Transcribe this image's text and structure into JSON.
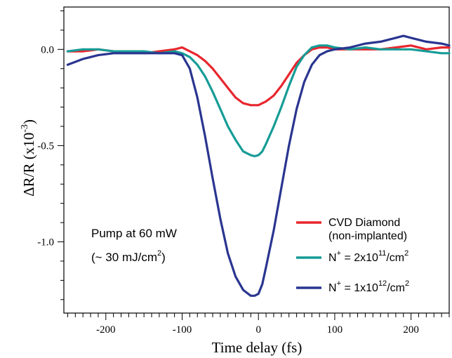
{
  "chart_data": {
    "type": "line",
    "xlabel": "Time delay (fs)",
    "ylabel_main": "ΔR/R (x10",
    "ylabel_exp": "-3",
    "ylabel_close": ")",
    "xlim": [
      -255,
      250
    ],
    "ylim": [
      -1.37,
      0.22
    ],
    "xticks": [
      -200,
      -100,
      0,
      100,
      200
    ],
    "xtick_labels": [
      "-200",
      "-100",
      "0",
      "100",
      "200"
    ],
    "yticks": [
      0,
      -0.5,
      -1.0
    ],
    "ytick_labels": [
      "0.0",
      "-0.5",
      "-1.0"
    ],
    "annotation": {
      "line1": "Pump at 60 mW",
      "line2_pre": "(~ 30 mJ/cm",
      "line2_sup": "2",
      "line2_post": ")"
    },
    "legend_position": "lower-right",
    "series": [
      {
        "name": "CVD Diamond",
        "name_line2": "(non-implanted)",
        "color": "#e8262d",
        "x": [
          -250,
          -230,
          -210,
          -190,
          -170,
          -150,
          -130,
          -110,
          -100,
          -90,
          -80,
          -70,
          -60,
          -50,
          -40,
          -30,
          -20,
          -10,
          -5,
          0,
          5,
          10,
          20,
          30,
          40,
          50,
          60,
          70,
          80,
          90,
          100,
          120,
          140,
          160,
          180,
          200,
          220,
          240,
          250
        ],
        "y": [
          -0.01,
          -0.01,
          0.0,
          -0.01,
          -0.01,
          -0.02,
          -0.01,
          0.0,
          0.01,
          -0.01,
          -0.03,
          -0.06,
          -0.1,
          -0.15,
          -0.2,
          -0.25,
          -0.28,
          -0.29,
          -0.29,
          -0.29,
          -0.28,
          -0.27,
          -0.24,
          -0.19,
          -0.13,
          -0.07,
          -0.03,
          0.0,
          0.01,
          0.01,
          0.0,
          0.0,
          0.0,
          0.0,
          0.01,
          0.02,
          0.0,
          0.01,
          0.01
        ]
      },
      {
        "name_pre": "N",
        "name_sup": "+",
        "name_mid": " = 2x10",
        "name_sup2": "11",
        "name_post": "/cm",
        "name_sup3": "2",
        "color": "#169c96",
        "x": [
          -250,
          -230,
          -210,
          -190,
          -170,
          -150,
          -130,
          -110,
          -100,
          -90,
          -80,
          -70,
          -60,
          -50,
          -40,
          -30,
          -20,
          -10,
          -5,
          0,
          5,
          10,
          20,
          30,
          40,
          50,
          60,
          70,
          80,
          90,
          100,
          120,
          140,
          160,
          180,
          200,
          220,
          240,
          250
        ],
        "y": [
          -0.01,
          0.0,
          0.0,
          -0.01,
          -0.01,
          -0.01,
          -0.02,
          -0.01,
          -0.02,
          -0.04,
          -0.08,
          -0.14,
          -0.22,
          -0.31,
          -0.4,
          -0.47,
          -0.53,
          -0.55,
          -0.555,
          -0.55,
          -0.53,
          -0.49,
          -0.4,
          -0.3,
          -0.19,
          -0.09,
          -0.03,
          0.01,
          0.02,
          0.02,
          0.01,
          0.0,
          0.01,
          0.0,
          0.0,
          0.0,
          -0.01,
          -0.02,
          -0.02
        ]
      },
      {
        "name_pre": "N",
        "name_sup": "+",
        "name_mid": " = 1x10",
        "name_sup2": "12",
        "name_post": "/cm",
        "name_sup3": "2",
        "color": "#2a3590",
        "x": [
          -250,
          -230,
          -210,
          -190,
          -170,
          -150,
          -130,
          -110,
          -100,
          -90,
          -80,
          -70,
          -60,
          -50,
          -40,
          -30,
          -20,
          -10,
          -5,
          0,
          5,
          10,
          20,
          30,
          40,
          50,
          60,
          70,
          80,
          90,
          100,
          120,
          140,
          160,
          180,
          190,
          200,
          220,
          240,
          250
        ],
        "y": [
          -0.08,
          -0.05,
          -0.03,
          -0.02,
          -0.02,
          -0.02,
          -0.02,
          -0.02,
          -0.03,
          -0.1,
          -0.25,
          -0.45,
          -0.67,
          -0.88,
          -1.06,
          -1.18,
          -1.25,
          -1.28,
          -1.28,
          -1.27,
          -1.22,
          -1.13,
          -0.94,
          -0.72,
          -0.5,
          -0.31,
          -0.17,
          -0.08,
          -0.03,
          -0.01,
          0.0,
          0.01,
          0.03,
          0.04,
          0.06,
          0.07,
          0.06,
          0.04,
          0.03,
          0.02
        ]
      }
    ]
  }
}
